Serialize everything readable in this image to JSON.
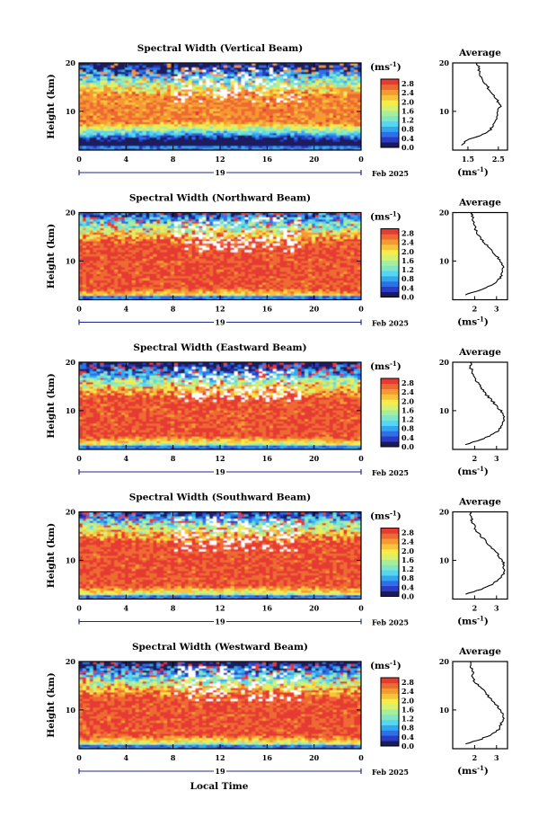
{
  "figure": {
    "xlabel": "Local Time",
    "month_label": "Feb 2025",
    "x_ticks": [
      "0",
      "4",
      "8",
      "12",
      "16",
      "20",
      "0"
    ],
    "date_tick": "19",
    "ylabel": "Height (km)",
    "y_ticks": [
      "20",
      "10"
    ],
    "colorbar_unit": "(ms",
    "colorbar_unit_sup": "-1",
    "colorbar_ticks": [
      "2.8",
      "2.4",
      "2.0",
      "1.6",
      "1.2",
      "0.8",
      "0.4",
      "0.0"
    ],
    "colormap": [
      "#1a1a5e",
      "#2b3bc4",
      "#2f6fe8",
      "#33a8f0",
      "#56d6f0",
      "#7fe6c8",
      "#a6ee9a",
      "#d6f070",
      "#f7ec4a",
      "#f8c23a",
      "#f59a33",
      "#ee6a33",
      "#e63b32"
    ],
    "average_title": "Average",
    "average_xlabel": "(ms",
    "average_xlabel_sup": "-1"
  },
  "chart_data": [
    {
      "type": "heatmap",
      "title": "Spectral Width (Vertical Beam)",
      "x_range_hours": [
        0,
        24
      ],
      "y_range_km": [
        2,
        20
      ],
      "color_range": [
        0,
        3.0
      ],
      "core_band_km": [
        7.5,
        13.5
      ],
      "core_value": 2.6,
      "average_profile": {
        "xlim": [
          1.0,
          2.8
        ],
        "x_ticks": [
          "1.5",
          "2.5"
        ],
        "height_km": [
          3,
          4,
          5,
          6,
          7,
          8,
          9,
          10,
          11,
          12,
          13,
          14,
          15,
          16,
          17,
          18,
          19,
          20
        ],
        "value_ms": [
          1.3,
          1.45,
          1.9,
          2.2,
          2.35,
          2.4,
          2.45,
          2.5,
          2.55,
          2.5,
          2.4,
          2.2,
          2.15,
          2.0,
          1.95,
          1.9,
          1.85,
          1.8
        ]
      }
    },
    {
      "type": "heatmap",
      "title": "Spectral Width (Northward Beam)",
      "x_range_hours": [
        0,
        24
      ],
      "y_range_km": [
        2,
        20
      ],
      "color_range": [
        0,
        3.0
      ],
      "core_band_km": [
        4,
        14
      ],
      "core_value": 2.9,
      "average_profile": {
        "xlim": [
          1.0,
          3.5
        ],
        "x_ticks": [
          "2",
          "3"
        ],
        "height_km": [
          3,
          4,
          5,
          6,
          7,
          8,
          9,
          10,
          11,
          12,
          13,
          14,
          15,
          16,
          17,
          18,
          19,
          20
        ],
        "value_ms": [
          1.6,
          2.2,
          2.8,
          3.1,
          3.2,
          3.3,
          3.3,
          3.2,
          3.0,
          2.8,
          2.6,
          2.4,
          2.2,
          2.1,
          2.0,
          2.0,
          1.9,
          1.9
        ]
      }
    },
    {
      "type": "heatmap",
      "title": "Spectral Width (Eastward Beam)",
      "x_range_hours": [
        0,
        24
      ],
      "y_range_km": [
        2,
        20
      ],
      "color_range": [
        0,
        3.0
      ],
      "core_band_km": [
        4.5,
        13
      ],
      "core_value": 2.9,
      "average_profile": {
        "xlim": [
          1.0,
          3.5
        ],
        "x_ticks": [
          "2",
          "3"
        ],
        "height_km": [
          3,
          4,
          5,
          6,
          7,
          8,
          9,
          10,
          11,
          12,
          13,
          14,
          15,
          16,
          17,
          18,
          19,
          20
        ],
        "value_ms": [
          1.6,
          2.3,
          2.8,
          3.1,
          3.25,
          3.3,
          3.3,
          3.2,
          3.0,
          2.8,
          2.6,
          2.4,
          2.3,
          2.1,
          2.0,
          1.9,
          1.8,
          1.8
        ]
      }
    },
    {
      "type": "heatmap",
      "title": "Spectral Width (Southward Beam)",
      "x_range_hours": [
        0,
        24
      ],
      "y_range_km": [
        2,
        20
      ],
      "color_range": [
        0,
        3.0
      ],
      "core_band_km": [
        4.5,
        14
      ],
      "core_value": 2.9,
      "average_profile": {
        "xlim": [
          1.0,
          3.5
        ],
        "x_ticks": [
          "2",
          "3"
        ],
        "height_km": [
          3,
          4,
          5,
          6,
          7,
          8,
          9,
          10,
          11,
          12,
          13,
          14,
          15,
          16,
          17,
          18,
          19,
          20
        ],
        "value_ms": [
          1.6,
          2.3,
          2.8,
          3.1,
          3.3,
          3.35,
          3.35,
          3.25,
          3.1,
          2.9,
          2.7,
          2.5,
          2.3,
          2.1,
          2.0,
          1.9,
          1.8,
          1.8
        ]
      }
    },
    {
      "type": "heatmap",
      "title": "Spectral Width (Westward Beam)",
      "x_range_hours": [
        0,
        24
      ],
      "y_range_km": [
        2,
        20
      ],
      "color_range": [
        0,
        3.0
      ],
      "core_band_km": [
        4.5,
        13
      ],
      "core_value": 2.9,
      "average_profile": {
        "xlim": [
          1.0,
          3.5
        ],
        "x_ticks": [
          "2",
          "3"
        ],
        "height_km": [
          3,
          4,
          5,
          6,
          7,
          8,
          9,
          10,
          11,
          12,
          13,
          14,
          15,
          16,
          17,
          18,
          19,
          20
        ],
        "value_ms": [
          1.6,
          2.3,
          2.8,
          3.1,
          3.2,
          3.3,
          3.3,
          3.2,
          3.0,
          2.8,
          2.6,
          2.4,
          2.2,
          2.0,
          1.9,
          1.9,
          1.8,
          1.8
        ]
      }
    }
  ]
}
